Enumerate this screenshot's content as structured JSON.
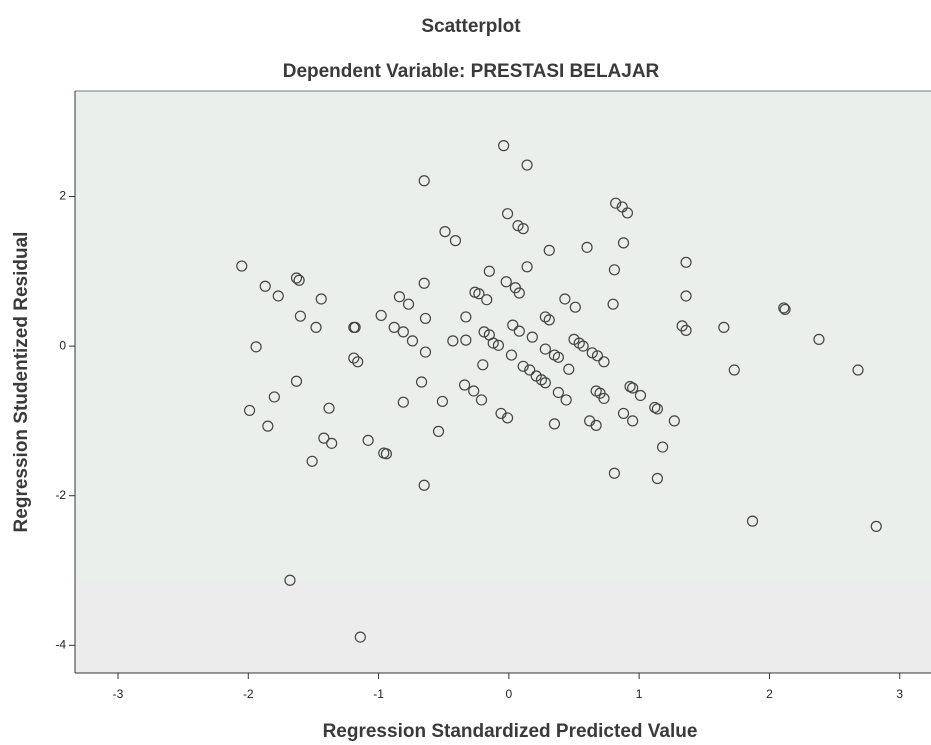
{
  "chart_data": {
    "type": "scatter",
    "title": "Scatterplot",
    "subtitle": "Dependent Variable: PRESTASI BELAJAR",
    "x_label": "Regression Standardized Predicted Value",
    "y_label": "Regression Studentized Residual",
    "xlim": [
      -3.33,
      3.24
    ],
    "ylim": [
      -4.37,
      3.41
    ],
    "xticks": [
      -3,
      -2,
      -1,
      0,
      1,
      2,
      3
    ],
    "yticks": [
      -4,
      -2,
      0,
      2
    ],
    "color": "#444444",
    "x": [
      -0.04,
      0.14,
      -0.65,
      0.82,
      0.87,
      0.91,
      -0.01,
      0.07,
      0.11,
      -0.49,
      -0.41,
      0.31,
      0.6,
      0.88,
      -2.05,
      1.36,
      -0.15,
      0.14,
      -1.63,
      -1.61,
      -0.65,
      -0.02,
      0.05,
      0.81,
      -1.87,
      -1.77,
      -0.26,
      -0.23,
      0.08,
      0.43,
      -1.44,
      -0.84,
      -0.77,
      -0.17,
      0.51,
      1.36,
      0.8,
      -1.6,
      -0.98,
      -0.64,
      -0.33,
      0.28,
      0.31,
      -1.48,
      -1.19,
      -1.18,
      -0.88,
      -0.81,
      0.03,
      -0.19,
      -0.15,
      0.08,
      0.18,
      1.33,
      1.36,
      1.65,
      2.11,
      2.12,
      -0.43,
      -0.33,
      -0.74,
      -0.12,
      -0.08,
      0.5,
      0.54,
      0.57,
      0.28,
      0.35,
      0.38,
      0.64,
      0.68,
      0.73,
      -1.94,
      -0.64,
      0.02,
      -1.19,
      -1.16,
      -0.2,
      0.11,
      0.16,
      0.46,
      0.21,
      0.25,
      0.28,
      2.38,
      1.73,
      2.68,
      -0.67,
      -1.63,
      -0.34,
      -0.27,
      0.38,
      0.67,
      0.7,
      0.73,
      0.93,
      0.95,
      1.01,
      -1.99,
      -1.8,
      -0.81,
      -0.51,
      -0.21,
      0.44,
      -1.38,
      1.12,
      1.14,
      0.88,
      0.95,
      -1.85,
      -0.06,
      -0.01,
      0.35,
      0.62,
      0.67,
      1.27,
      -1.42,
      -1.36,
      -1.08,
      -0.54,
      -0.96,
      -0.94,
      1.18,
      -1.51,
      0.81,
      1.14,
      -0.65,
      1.87,
      2.82,
      -1.68,
      -1.14
    ],
    "y": [
      2.68,
      2.42,
      2.21,
      1.91,
      1.86,
      1.78,
      1.77,
      1.61,
      1.57,
      1.53,
      1.41,
      1.28,
      1.32,
      1.38,
      1.07,
      1.12,
      1.0,
      1.06,
      0.91,
      0.88,
      0.84,
      0.86,
      0.78,
      1.02,
      0.8,
      0.67,
      0.72,
      0.7,
      0.71,
      0.63,
      0.63,
      0.66,
      0.56,
      0.62,
      0.52,
      0.67,
      0.56,
      0.4,
      0.41,
      0.37,
      0.39,
      0.39,
      0.35,
      0.25,
      0.25,
      0.25,
      0.25,
      0.19,
      0.28,
      0.19,
      0.15,
      0.2,
      0.12,
      0.27,
      0.21,
      0.25,
      0.51,
      0.49,
      0.07,
      0.08,
      0.07,
      0.04,
      0.01,
      0.09,
      0.04,
      0,
      -0.04,
      -0.12,
      -0.15,
      -0.09,
      -0.13,
      -0.21,
      -0.01,
      -0.08,
      -0.12,
      -0.16,
      -0.21,
      -0.25,
      -0.27,
      -0.32,
      -0.31,
      -0.4,
      -0.45,
      -0.49,
      0.09,
      -0.32,
      -0.32,
      -0.48,
      -0.47,
      -0.52,
      -0.6,
      -0.62,
      -0.6,
      -0.63,
      -0.7,
      -0.54,
      -0.56,
      -0.66,
      -0.86,
      -0.68,
      -0.75,
      -0.74,
      -0.72,
      -0.72,
      -0.83,
      -0.82,
      -0.84,
      -0.9,
      -1.0,
      -1.07,
      -0.9,
      -0.96,
      -1.04,
      -1.0,
      -1.06,
      -1.0,
      -1.23,
      -1.3,
      -1.26,
      -1.14,
      -1.43,
      -1.44,
      -1.35,
      -1.54,
      -1.7,
      -1.77,
      -1.86,
      -2.34,
      -2.41,
      -3.13,
      -3.89
    ]
  }
}
